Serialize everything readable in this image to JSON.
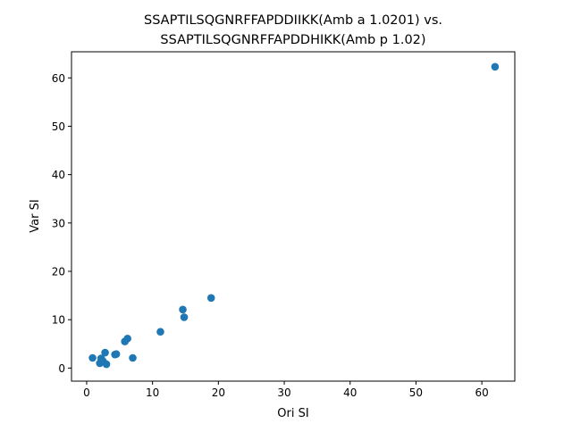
{
  "chart_data": {
    "type": "scatter",
    "title": "SSAPTILSQGNRFFAPDDIIKK(Amb a 1.0201) vs.\nSSAPTILSQGNRFFAPDDHIKK(Amb p 1.02)",
    "title_lines": [
      "SSAPTILSQGNRFFAPDDIIKK(Amb a 1.0201) vs.",
      "SSAPTILSQGNRFFAPDDHIKK(Amb p 1.02)"
    ],
    "xlabel": "Ori SI",
    "ylabel": "Var SI",
    "xlim": [
      -2.3,
      65.0
    ],
    "ylim": [
      -2.7,
      65.4
    ],
    "xticks": [
      0,
      10,
      20,
      30,
      40,
      50,
      60
    ],
    "yticks": [
      0,
      10,
      20,
      30,
      40,
      50,
      60
    ],
    "grid": false,
    "marker_color": "#1f77b4",
    "series": [
      {
        "points": [
          {
            "x": 0.9,
            "y": 2.1
          },
          {
            "x": 2.0,
            "y": 1.0
          },
          {
            "x": 2.2,
            "y": 2.0
          },
          {
            "x": 2.5,
            "y": 1.4
          },
          {
            "x": 2.8,
            "y": 3.2
          },
          {
            "x": 3.0,
            "y": 0.8
          },
          {
            "x": 4.3,
            "y": 2.8
          },
          {
            "x": 4.5,
            "y": 2.9
          },
          {
            "x": 5.8,
            "y": 5.5
          },
          {
            "x": 6.2,
            "y": 6.1
          },
          {
            "x": 7.0,
            "y": 2.1
          },
          {
            "x": 11.2,
            "y": 7.5
          },
          {
            "x": 14.6,
            "y": 12.1
          },
          {
            "x": 14.8,
            "y": 10.5
          },
          {
            "x": 18.9,
            "y": 14.5
          },
          {
            "x": 62.0,
            "y": 62.3
          }
        ]
      }
    ]
  }
}
